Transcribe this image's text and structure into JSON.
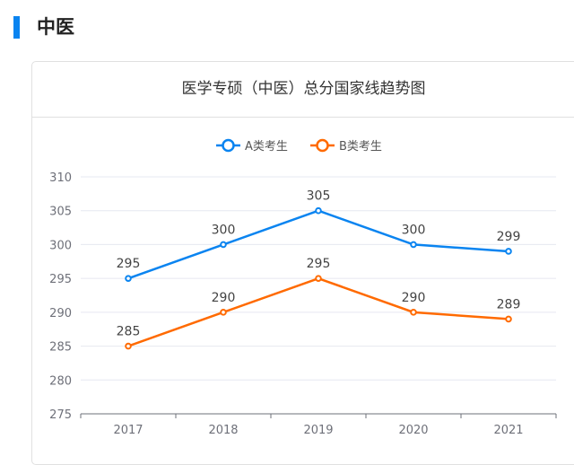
{
  "section": {
    "title": "中医",
    "accent": "#0a84f0"
  },
  "chart_data": {
    "type": "line",
    "title": "医学专硕（中医）总分国家线趋势图",
    "categories": [
      "2017",
      "2018",
      "2019",
      "2020",
      "2021"
    ],
    "series": [
      {
        "name": "A类考生",
        "color": "#0a84f0",
        "values": [
          295,
          300,
          305,
          300,
          299
        ]
      },
      {
        "name": "B类考生",
        "color": "#ff6a00",
        "values": [
          285,
          290,
          295,
          290,
          289
        ]
      }
    ],
    "ylim": [
      275,
      310
    ],
    "yticks": [
      275,
      280,
      285,
      290,
      295,
      300,
      305,
      310
    ],
    "grid": true,
    "legend": "top-center",
    "data_labels": true
  }
}
